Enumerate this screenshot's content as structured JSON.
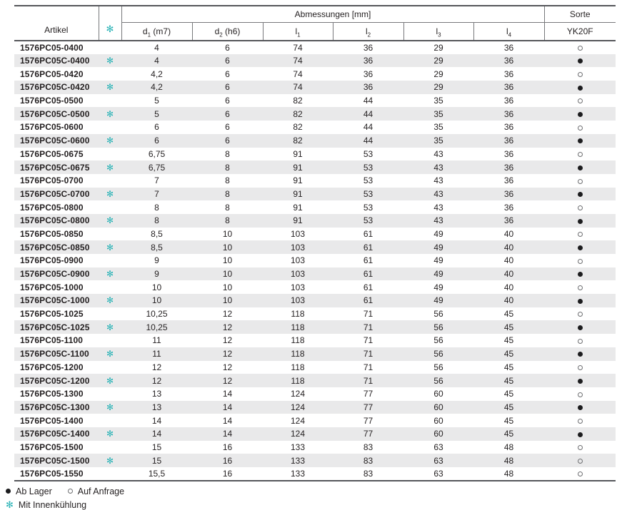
{
  "symbols": {
    "coolant": "✻",
    "in_stock_dot": "●",
    "on_request_dot": "○"
  },
  "colors": {
    "accent_teal": "#2AB3B6",
    "stripe_gray": "#E9E9EA",
    "rule_dark": "#55565A",
    "rule_light": "#77787B",
    "text": "#231F20"
  },
  "table": {
    "group_headers": {
      "dimensions": "Abmessungen [mm]",
      "sorte": "Sorte"
    },
    "columns": {
      "artikel": "Artikel",
      "dims": [
        {
          "base": "d",
          "sub": "1",
          "suffix": " (m7)"
        },
        {
          "base": "d",
          "sub": "2",
          "suffix": " (h6)"
        },
        {
          "base": "l",
          "sub": "1",
          "suffix": ""
        },
        {
          "base": "l",
          "sub": "2",
          "suffix": ""
        },
        {
          "base": "l",
          "sub": "3",
          "suffix": ""
        },
        {
          "base": "l",
          "sub": "4",
          "suffix": ""
        }
      ],
      "sorte_grade": "YK20F"
    },
    "rows": [
      {
        "artikel": "1576PC05-0400",
        "cool": false,
        "d1": "4",
        "d2": "6",
        "l1": "74",
        "l2": "36",
        "l3": "29",
        "l4": "36",
        "avail": "anfrage"
      },
      {
        "artikel": "1576PC05C-0400",
        "cool": true,
        "d1": "4",
        "d2": "6",
        "l1": "74",
        "l2": "36",
        "l3": "29",
        "l4": "36",
        "avail": "lager"
      },
      {
        "artikel": "1576PC05-0420",
        "cool": false,
        "d1": "4,2",
        "d2": "6",
        "l1": "74",
        "l2": "36",
        "l3": "29",
        "l4": "36",
        "avail": "anfrage"
      },
      {
        "artikel": "1576PC05C-0420",
        "cool": true,
        "d1": "4,2",
        "d2": "6",
        "l1": "74",
        "l2": "36",
        "l3": "29",
        "l4": "36",
        "avail": "lager"
      },
      {
        "artikel": "1576PC05-0500",
        "cool": false,
        "d1": "5",
        "d2": "6",
        "l1": "82",
        "l2": "44",
        "l3": "35",
        "l4": "36",
        "avail": "anfrage"
      },
      {
        "artikel": "1576PC05C-0500",
        "cool": true,
        "d1": "5",
        "d2": "6",
        "l1": "82",
        "l2": "44",
        "l3": "35",
        "l4": "36",
        "avail": "lager"
      },
      {
        "artikel": "1576PC05-0600",
        "cool": false,
        "d1": "6",
        "d2": "6",
        "l1": "82",
        "l2": "44",
        "l3": "35",
        "l4": "36",
        "avail": "anfrage"
      },
      {
        "artikel": "1576PC05C-0600",
        "cool": true,
        "d1": "6",
        "d2": "6",
        "l1": "82",
        "l2": "44",
        "l3": "35",
        "l4": "36",
        "avail": "lager"
      },
      {
        "artikel": "1576PC05-0675",
        "cool": false,
        "d1": "6,75",
        "d2": "8",
        "l1": "91",
        "l2": "53",
        "l3": "43",
        "l4": "36",
        "avail": "anfrage"
      },
      {
        "artikel": "1576PC05C-0675",
        "cool": true,
        "d1": "6,75",
        "d2": "8",
        "l1": "91",
        "l2": "53",
        "l3": "43",
        "l4": "36",
        "avail": "lager"
      },
      {
        "artikel": "1576PC05-0700",
        "cool": false,
        "d1": "7",
        "d2": "8",
        "l1": "91",
        "l2": "53",
        "l3": "43",
        "l4": "36",
        "avail": "anfrage"
      },
      {
        "artikel": "1576PC05C-0700",
        "cool": true,
        "d1": "7",
        "d2": "8",
        "l1": "91",
        "l2": "53",
        "l3": "43",
        "l4": "36",
        "avail": "lager"
      },
      {
        "artikel": "1576PC05-0800",
        "cool": false,
        "d1": "8",
        "d2": "8",
        "l1": "91",
        "l2": "53",
        "l3": "43",
        "l4": "36",
        "avail": "anfrage"
      },
      {
        "artikel": "1576PC05C-0800",
        "cool": true,
        "d1": "8",
        "d2": "8",
        "l1": "91",
        "l2": "53",
        "l3": "43",
        "l4": "36",
        "avail": "lager"
      },
      {
        "artikel": "1576PC05-0850",
        "cool": false,
        "d1": "8,5",
        "d2": "10",
        "l1": "103",
        "l2": "61",
        "l3": "49",
        "l4": "40",
        "avail": "anfrage"
      },
      {
        "artikel": "1576PC05C-0850",
        "cool": true,
        "d1": "8,5",
        "d2": "10",
        "l1": "103",
        "l2": "61",
        "l3": "49",
        "l4": "40",
        "avail": "lager"
      },
      {
        "artikel": "1576PC05-0900",
        "cool": false,
        "d1": "9",
        "d2": "10",
        "l1": "103",
        "l2": "61",
        "l3": "49",
        "l4": "40",
        "avail": "anfrage"
      },
      {
        "artikel": "1576PC05C-0900",
        "cool": true,
        "d1": "9",
        "d2": "10",
        "l1": "103",
        "l2": "61",
        "l3": "49",
        "l4": "40",
        "avail": "lager"
      },
      {
        "artikel": "1576PC05-1000",
        "cool": false,
        "d1": "10",
        "d2": "10",
        "l1": "103",
        "l2": "61",
        "l3": "49",
        "l4": "40",
        "avail": "anfrage"
      },
      {
        "artikel": "1576PC05C-1000",
        "cool": true,
        "d1": "10",
        "d2": "10",
        "l1": "103",
        "l2": "61",
        "l3": "49",
        "l4": "40",
        "avail": "lager"
      },
      {
        "artikel": "1576PC05-1025",
        "cool": false,
        "d1": "10,25",
        "d2": "12",
        "l1": "118",
        "l2": "71",
        "l3": "56",
        "l4": "45",
        "avail": "anfrage"
      },
      {
        "artikel": "1576PC05C-1025",
        "cool": true,
        "d1": "10,25",
        "d2": "12",
        "l1": "118",
        "l2": "71",
        "l3": "56",
        "l4": "45",
        "avail": "lager"
      },
      {
        "artikel": "1576PC05-1100",
        "cool": false,
        "d1": "11",
        "d2": "12",
        "l1": "118",
        "l2": "71",
        "l3": "56",
        "l4": "45",
        "avail": "anfrage"
      },
      {
        "artikel": "1576PC05C-1100",
        "cool": true,
        "d1": "11",
        "d2": "12",
        "l1": "118",
        "l2": "71",
        "l3": "56",
        "l4": "45",
        "avail": "lager"
      },
      {
        "artikel": "1576PC05-1200",
        "cool": false,
        "d1": "12",
        "d2": "12",
        "l1": "118",
        "l2": "71",
        "l3": "56",
        "l4": "45",
        "avail": "anfrage"
      },
      {
        "artikel": "1576PC05C-1200",
        "cool": true,
        "d1": "12",
        "d2": "12",
        "l1": "118",
        "l2": "71",
        "l3": "56",
        "l4": "45",
        "avail": "lager"
      },
      {
        "artikel": "1576PC05-1300",
        "cool": false,
        "d1": "13",
        "d2": "14",
        "l1": "124",
        "l2": "77",
        "l3": "60",
        "l4": "45",
        "avail": "anfrage"
      },
      {
        "artikel": "1576PC05C-1300",
        "cool": true,
        "d1": "13",
        "d2": "14",
        "l1": "124",
        "l2": "77",
        "l3": "60",
        "l4": "45",
        "avail": "lager"
      },
      {
        "artikel": "1576PC05-1400",
        "cool": false,
        "d1": "14",
        "d2": "14",
        "l1": "124",
        "l2": "77",
        "l3": "60",
        "l4": "45",
        "avail": "anfrage"
      },
      {
        "artikel": "1576PC05C-1400",
        "cool": true,
        "d1": "14",
        "d2": "14",
        "l1": "124",
        "l2": "77",
        "l3": "60",
        "l4": "45",
        "avail": "lager"
      },
      {
        "artikel": "1576PC05-1500",
        "cool": false,
        "d1": "15",
        "d2": "16",
        "l1": "133",
        "l2": "83",
        "l3": "63",
        "l4": "48",
        "avail": "anfrage"
      },
      {
        "artikel": "1576PC05C-1500",
        "cool": true,
        "d1": "15",
        "d2": "16",
        "l1": "133",
        "l2": "83",
        "l3": "63",
        "l4": "48",
        "avail": "anfrage"
      },
      {
        "artikel": "1576PC05-1550",
        "cool": false,
        "d1": "15,5",
        "d2": "16",
        "l1": "133",
        "l2": "83",
        "l3": "63",
        "l4": "48",
        "avail": "anfrage"
      }
    ]
  },
  "legend": {
    "ab_lager": "Ab Lager",
    "auf_anfrage": "Auf Anfrage",
    "innenkuehlung": "Mit Innenkühlung"
  }
}
